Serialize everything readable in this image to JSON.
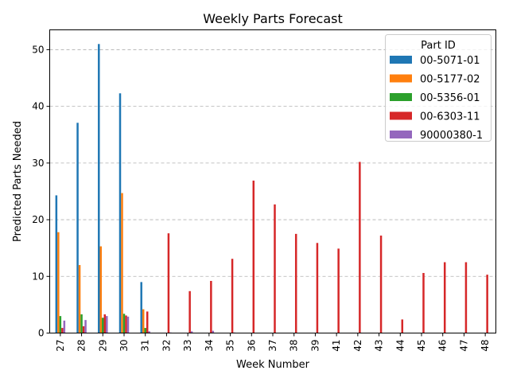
{
  "chart_data": {
    "type": "bar",
    "title": "Weekly Parts Forecast",
    "xlabel": "Week Number",
    "ylabel": "Predicted Parts Needed",
    "ylim": [
      0,
      53.5
    ],
    "yticks": [
      0,
      10,
      20,
      30,
      40,
      50
    ],
    "grid": "y-dashed",
    "legend": {
      "title": "Part ID",
      "placement": "top-right"
    },
    "categories": [
      "27",
      "28",
      "29",
      "30",
      "31",
      "32",
      "33",
      "34",
      "35",
      "36",
      "37",
      "38",
      "39",
      "41",
      "42",
      "43",
      "44",
      "45",
      "46",
      "47",
      "48"
    ],
    "series": [
      {
        "name": "00-5071-01",
        "color": "#1f77b4",
        "values": [
          24.3,
          37.1,
          51.0,
          42.3,
          9.0,
          0,
          0,
          0,
          0,
          0,
          0,
          0,
          0,
          0,
          0,
          0,
          0,
          0,
          0,
          0,
          0
        ]
      },
      {
        "name": "00-5177-02",
        "color": "#ff7f0e",
        "values": [
          17.8,
          12.0,
          15.3,
          24.7,
          4.2,
          0,
          0,
          0,
          0,
          0,
          0,
          0,
          0,
          0,
          0,
          0,
          0,
          0,
          0,
          0,
          0
        ]
      },
      {
        "name": "00-5356-01",
        "color": "#2ca02c",
        "values": [
          3.0,
          3.3,
          2.7,
          3.4,
          0.9,
          0,
          0,
          0,
          0,
          0,
          0,
          0,
          0,
          0,
          0,
          0,
          0,
          0,
          0,
          0,
          0
        ]
      },
      {
        "name": "00-6303-11",
        "color": "#d62728",
        "values": [
          0.9,
          1.2,
          3.3,
          3.1,
          3.8,
          17.6,
          7.4,
          9.2,
          13.1,
          26.9,
          22.7,
          17.5,
          15.9,
          14.9,
          30.2,
          17.2,
          2.4,
          10.6,
          12.5,
          12.5,
          10.3
        ]
      },
      {
        "name": "90000380-1",
        "color": "#9467bd",
        "values": [
          2.2,
          2.3,
          3.0,
          2.9,
          0.3,
          0.1,
          0.3,
          0.4,
          0.1,
          0,
          0,
          0,
          0,
          0,
          0,
          0,
          0,
          0,
          0,
          0,
          0
        ]
      }
    ]
  }
}
